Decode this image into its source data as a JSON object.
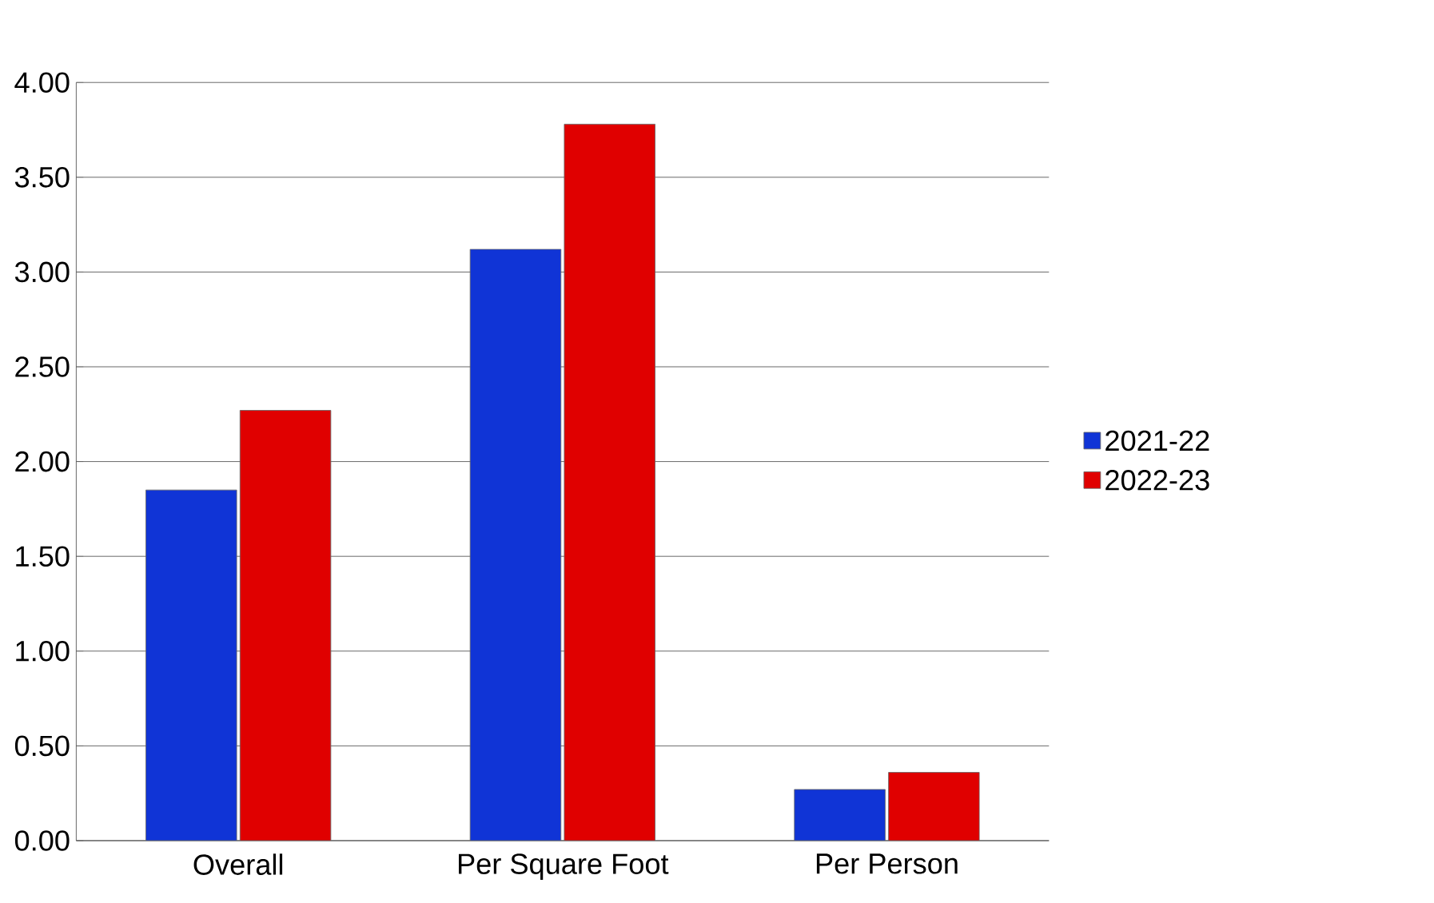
{
  "chart_data": {
    "type": "bar",
    "categories": [
      "Overall",
      "Per Square Foot",
      "Per Person"
    ],
    "series": [
      {
        "name": "2021-22",
        "color": "#1034d6",
        "values": [
          1.85,
          3.12,
          0.27
        ]
      },
      {
        "name": "2022-23",
        "color": "#e00000",
        "values": [
          2.27,
          3.78,
          0.36
        ]
      }
    ],
    "ylim": [
      0,
      4
    ],
    "yticks": [
      {
        "value": 0,
        "label": "0.00"
      },
      {
        "value": 0.5,
        "label": "0.50"
      },
      {
        "value": 1,
        "label": "1.00"
      },
      {
        "value": 1.5,
        "label": "1.50"
      },
      {
        "value": 2,
        "label": "2.00"
      },
      {
        "value": 2.5,
        "label": "2.50"
      },
      {
        "value": 3,
        "label": "3.00"
      },
      {
        "value": 3.5,
        "label": "3.50"
      },
      {
        "value": 4,
        "label": "4.00"
      }
    ],
    "grid": "y",
    "legend": "right"
  }
}
